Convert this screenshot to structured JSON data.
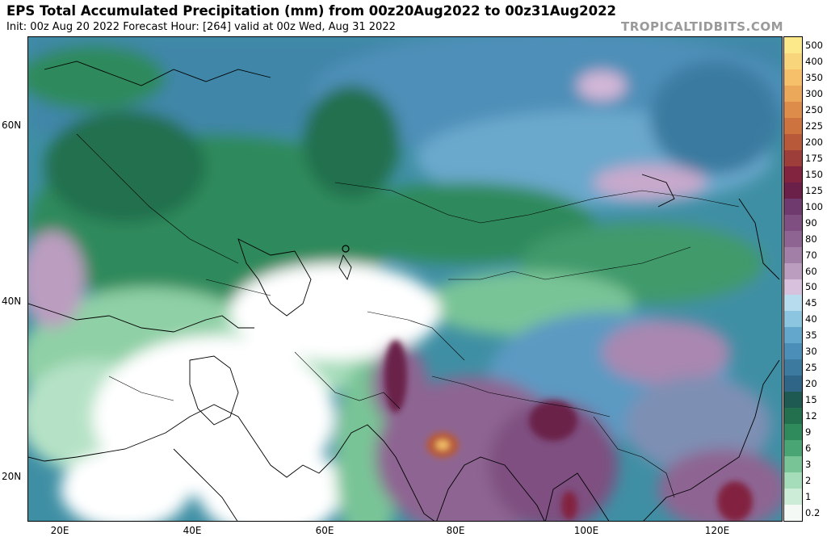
{
  "header": {
    "title": "EPS Total Accumulated Precipitation (mm) from 00z20Aug2022 to 00z31Aug2022",
    "subtitle": "Init: 00z Aug 20 2022   Forecast Hour: [264]   valid at 00z Wed, Aug 31 2022",
    "site": "TROPICALTIDBITS.COM"
  },
  "map": {
    "lat_labels": [
      "60N",
      "40N",
      "20N"
    ],
    "lon_labels": [
      "20E",
      "40E",
      "60E",
      "80E",
      "100E",
      "120E"
    ]
  },
  "colorbar": {
    "levels": [
      {
        "label": "500",
        "color": "#fbe98a"
      },
      {
        "label": "400",
        "color": "#f8d47a"
      },
      {
        "label": "350",
        "color": "#f5c069"
      },
      {
        "label": "300",
        "color": "#eba85a"
      },
      {
        "label": "250",
        "color": "#de8c4a"
      },
      {
        "label": "225",
        "color": "#cd7340"
      },
      {
        "label": "200",
        "color": "#b85a3a"
      },
      {
        "label": "175",
        "color": "#9e3e3a"
      },
      {
        "label": "150",
        "color": "#822440"
      },
      {
        "label": "125",
        "color": "#6a2048"
      },
      {
        "label": "100",
        "color": "#6f3a6e"
      },
      {
        "label": "90",
        "color": "#7e4f80"
      },
      {
        "label": "80",
        "color": "#8e6592"
      },
      {
        "label": "70",
        "color": "#a27fa6"
      },
      {
        "label": "60",
        "color": "#bb9dc0"
      },
      {
        "label": "50",
        "color": "#d8c1dc"
      },
      {
        "label": "45",
        "color": "#b6dcee"
      },
      {
        "label": "40",
        "color": "#8cc5e0"
      },
      {
        "label": "35",
        "color": "#63a8cc"
      },
      {
        "label": "30",
        "color": "#4b8fb8"
      },
      {
        "label": "25",
        "color": "#3d7aa0"
      },
      {
        "label": "20",
        "color": "#2f6688"
      },
      {
        "label": "15",
        "color": "#1e5a52"
      },
      {
        "label": "12",
        "color": "#23704e"
      },
      {
        "label": "9",
        "color": "#2f8a5c"
      },
      {
        "label": "6",
        "color": "#4aa574"
      },
      {
        "label": "3",
        "color": "#79c497"
      },
      {
        "label": "2",
        "color": "#a5dcba"
      },
      {
        "label": "1",
        "color": "#cdecd8"
      },
      {
        "label": "0.2",
        "color": "#f4f9f5"
      }
    ]
  }
}
